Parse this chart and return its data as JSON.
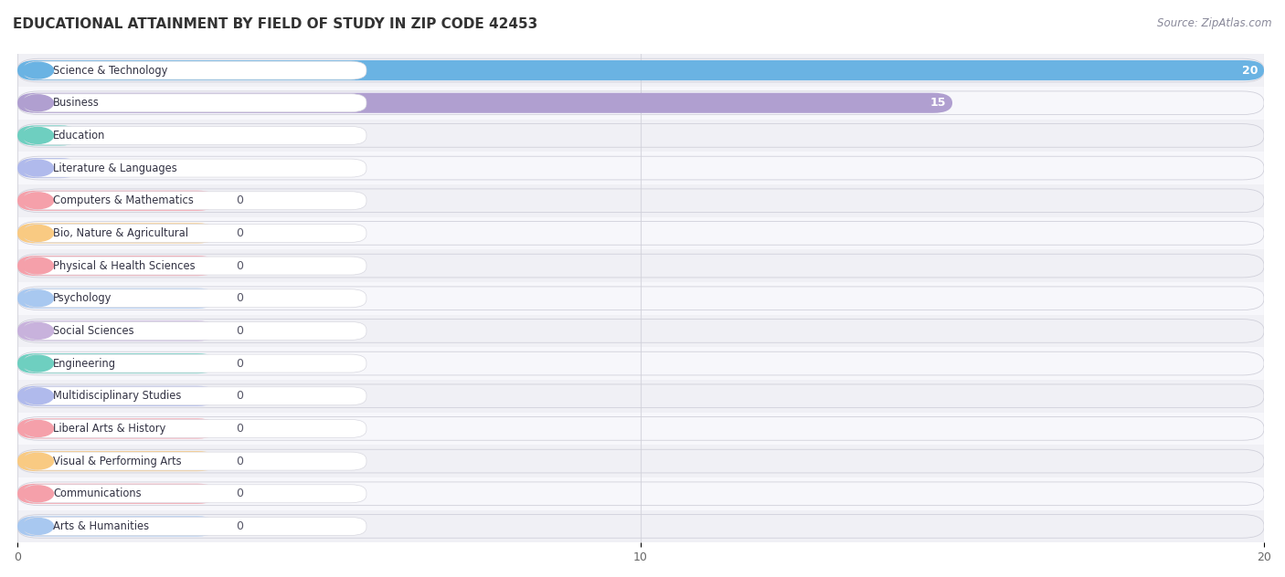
{
  "title": "EDUCATIONAL ATTAINMENT BY FIELD OF STUDY IN ZIP CODE 42453",
  "source": "Source: ZipAtlas.com",
  "categories": [
    "Science & Technology",
    "Business",
    "Education",
    "Literature & Languages",
    "Computers & Mathematics",
    "Bio, Nature & Agricultural",
    "Physical & Health Sciences",
    "Psychology",
    "Social Sciences",
    "Engineering",
    "Multidisciplinary Studies",
    "Liberal Arts & History",
    "Visual & Performing Arts",
    "Communications",
    "Arts & Humanities"
  ],
  "values": [
    20,
    15,
    1,
    1,
    0,
    0,
    0,
    0,
    0,
    0,
    0,
    0,
    0,
    0,
    0
  ],
  "bar_colors": [
    "#6ab3e3",
    "#b09fd0",
    "#6ecfc0",
    "#b0baec",
    "#f5a0aa",
    "#f9ca82",
    "#f5a0aa",
    "#a8c8f0",
    "#c8b2dc",
    "#6ecfc0",
    "#b0baec",
    "#f5a0aa",
    "#f9ca82",
    "#f5a0aa",
    "#a8c8f0"
  ],
  "xlim": [
    0,
    20
  ],
  "xticks": [
    0,
    10,
    20
  ],
  "background_color": "#ffffff",
  "row_bg_alt": "#f0f0f5",
  "row_bg_main": "#f7f7fb",
  "title_fontsize": 11,
  "bar_height": 0.62,
  "zero_bar_width": 3.2,
  "value_label_fontsize": 9
}
